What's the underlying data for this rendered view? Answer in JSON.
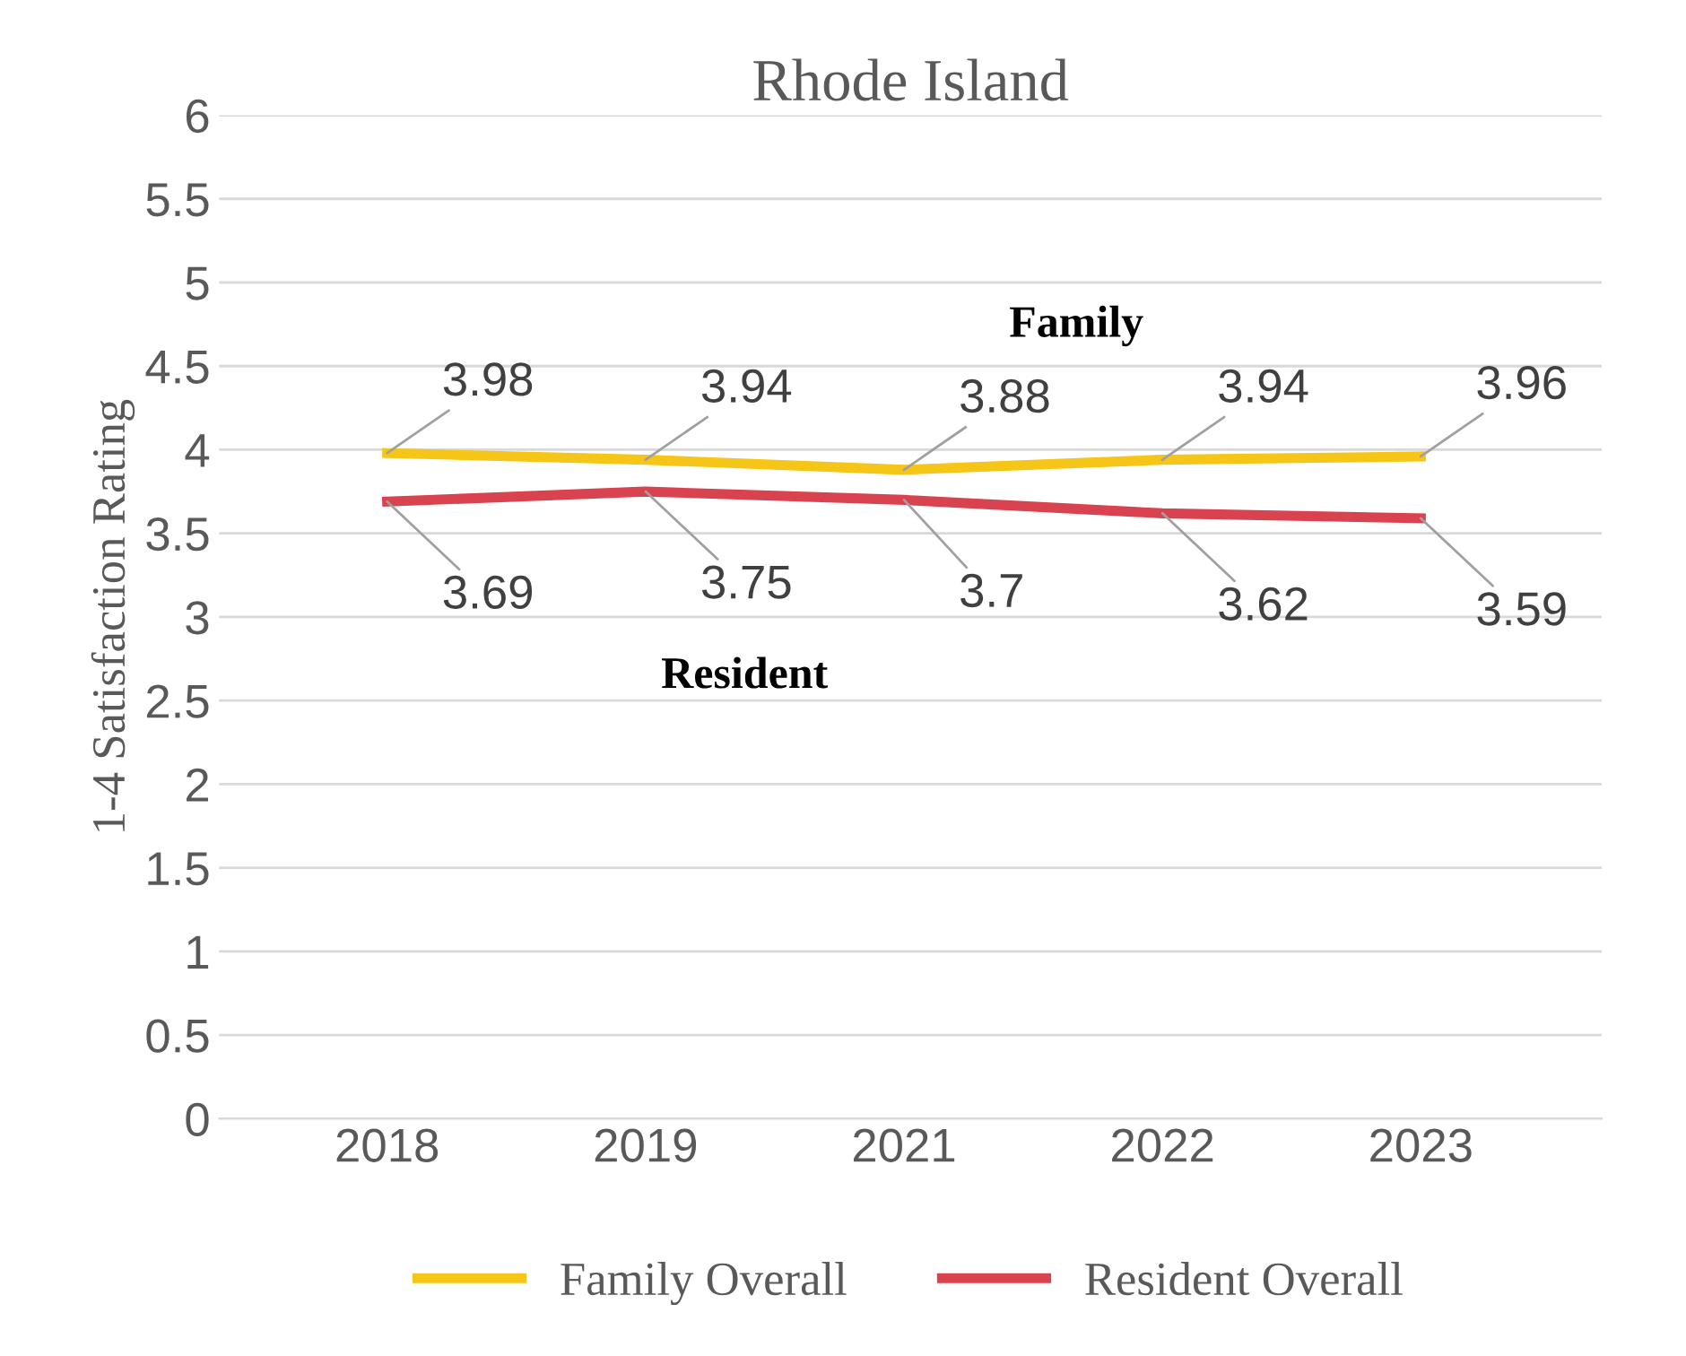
{
  "chart_data": {
    "type": "line",
    "title": "Rhode Island",
    "ylabel": "1-4 Satisfaction Rating",
    "categories": [
      "2018",
      "2019",
      "2021",
      "2022",
      "2023"
    ],
    "series": [
      {
        "name": "Family Overall",
        "color": "#f5c518",
        "values": [
          3.98,
          3.94,
          3.88,
          3.94,
          3.96
        ]
      },
      {
        "name": "Resident Overall",
        "color": "#d9434f",
        "values": [
          3.69,
          3.75,
          3.7,
          3.62,
          3.59
        ]
      }
    ],
    "annotations": [
      "Family",
      "Resident"
    ],
    "ylim": [
      0,
      6
    ],
    "yticks": [
      0,
      0.5,
      1,
      1.5,
      2,
      2.5,
      3,
      3.5,
      4,
      4.5,
      5,
      5.5,
      6
    ],
    "grid": "y",
    "legend": "bottom",
    "data_labels": true,
    "marker": "none",
    "line_style": "solid"
  }
}
